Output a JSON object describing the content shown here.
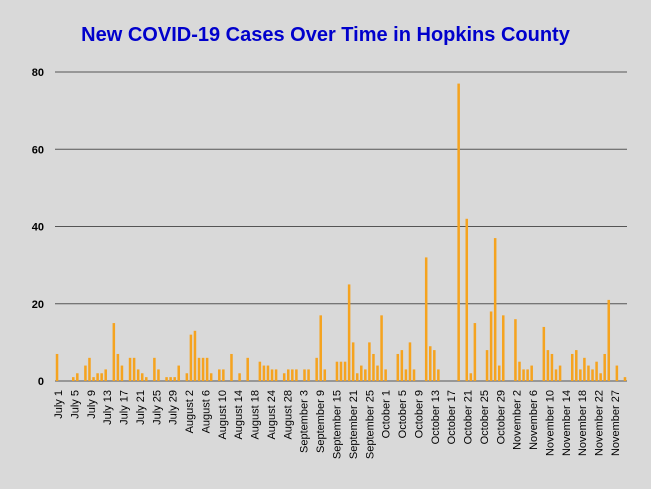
{
  "colors": {
    "background": "#d9d9d9",
    "bar": "#f5a31f",
    "title": "#0000cc",
    "grid": "#555555"
  },
  "chart_data": {
    "type": "bar",
    "title": "New COVID-19 Cases Over Time in Hopkins County",
    "xlabel": "",
    "ylabel": "",
    "ylim": [
      0,
      80
    ],
    "yticks": [
      0,
      20,
      40,
      60,
      80
    ],
    "grid": true,
    "legend": "none",
    "xtick_labels": [
      "July 1",
      "July 5",
      "July 9",
      "July 13",
      "July 17",
      "July 21",
      "July 25",
      "July 29",
      "August 2",
      "August 6",
      "August 10",
      "August 14",
      "August 18",
      "August 24",
      "August 28",
      "September 3",
      "September 9",
      "September 15",
      "September 21",
      "September 25",
      "October 1",
      "October 5",
      "October 9",
      "October 13",
      "October 17",
      "October 21",
      "October 25",
      "October 29",
      "November 2",
      "November 6",
      "November 10",
      "November 14",
      "November 18",
      "November 22",
      "November 27"
    ],
    "values": [
      7,
      0,
      0,
      0,
      1,
      2,
      0,
      4,
      6,
      1,
      2,
      2,
      3,
      0,
      15,
      7,
      4,
      0,
      6,
      6,
      3,
      2,
      1,
      0,
      6,
      3,
      0,
      1,
      1,
      1,
      4,
      0,
      2,
      12,
      13,
      6,
      6,
      6,
      2,
      0,
      3,
      3,
      0,
      7,
      0,
      2,
      0,
      6,
      0,
      0,
      5,
      4,
      4,
      3,
      3,
      0,
      2,
      3,
      3,
      3,
      0,
      3,
      3,
      0,
      6,
      17,
      3,
      0,
      0,
      5,
      5,
      5,
      25,
      10,
      2,
      4,
      3,
      10,
      7,
      4,
      17,
      3,
      0,
      0,
      7,
      8,
      3,
      10,
      3,
      0,
      0,
      32,
      9,
      8,
      3,
      0,
      0,
      0,
      0,
      77,
      0,
      42,
      2,
      15,
      0,
      0,
      8,
      18,
      37,
      4,
      17,
      0,
      0,
      16,
      5,
      3,
      3,
      4,
      0,
      0,
      14,
      8,
      7,
      3,
      4,
      0,
      0,
      7,
      8,
      3,
      6,
      4,
      3,
      5,
      2,
      7,
      21,
      0,
      4,
      0,
      1
    ]
  }
}
